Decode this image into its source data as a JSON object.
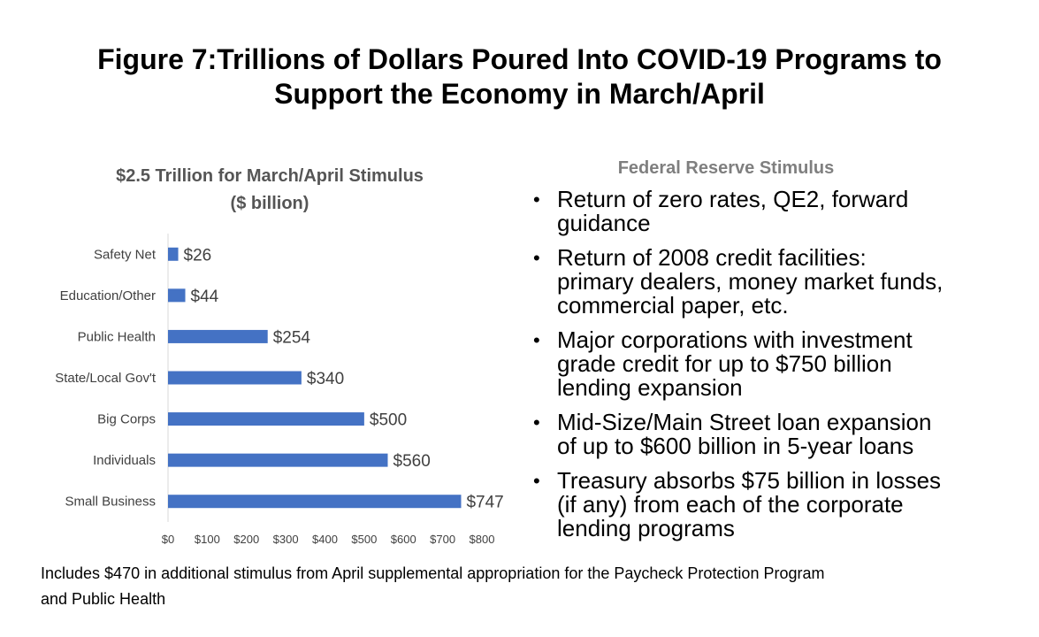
{
  "page": {
    "title_line1": "Figure 7:Trillions of Dollars Poured Into COVID-19 Programs to",
    "title_line2": "Support the Economy in March/April"
  },
  "chart_data": {
    "type": "bar",
    "orientation": "horizontal",
    "title_line1": "$2.5 Trillion for March/April Stimulus",
    "title_line2": "($ billion)",
    "categories": [
      "Safety Net",
      "Education/Other",
      "Public Health",
      "State/Local Gov't",
      "Big Corps",
      "Individuals",
      "Small Business"
    ],
    "values": [
      26,
      44,
      254,
      340,
      500,
      560,
      747
    ],
    "data_labels": [
      "$26",
      "$44",
      "$254",
      "$340",
      "$500",
      "$560",
      "$747"
    ],
    "x_ticks": [
      0,
      100,
      200,
      300,
      400,
      500,
      600,
      700,
      800
    ],
    "x_tick_labels": [
      "$0",
      "$100",
      "$200",
      "$300",
      "$400",
      "$500",
      "$600",
      "$700",
      "$800"
    ],
    "xlim": [
      0,
      800
    ],
    "bar_color": "#4472C4",
    "grid": false,
    "legend": "none"
  },
  "fed": {
    "title": "Federal Reserve Stimulus",
    "bullets": [
      {
        "line1": "Return of zero rates, QE2, forward",
        "line2": "guidance",
        "line3": ""
      },
      {
        "line1": "Return of 2008 credit facilities:",
        "line2": "primary dealers, money market funds,",
        "line3": "commercial paper, etc."
      },
      {
        "line1": "Major corporations with investment",
        "line2": "grade credit for up to $750 billion",
        "line3": "lending expansion"
      },
      {
        "line1": "Mid-Size/Main Street loan expansion",
        "line2": "of up to $600 billion in 5-year loans",
        "line3": ""
      },
      {
        "line1": "Treasury absorbs $75 billion in losses",
        "line2": "(if any) from each of the corporate",
        "line3": "lending programs"
      }
    ]
  },
  "footnote": {
    "line1": "Includes $470 in additional stimulus from April supplemental appropriation for the Paycheck Protection Program",
    "line2": "and Public Health"
  }
}
